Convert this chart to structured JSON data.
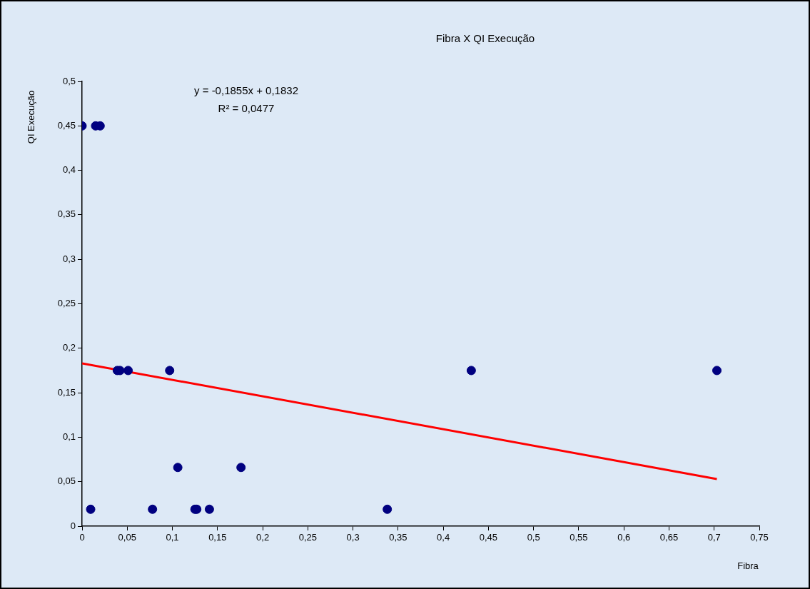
{
  "chart_data": {
    "type": "scatter",
    "title": "Fibra X QI Execução",
    "xlabel": "Fibra",
    "ylabel": "QI Execução",
    "annotations": [
      "y = -0,1855x + 0,1832",
      "R² = 0,0477"
    ],
    "series": [
      {
        "type": "scatter",
        "color": "#000080",
        "marker": "circle",
        "x": [
          0,
          0.015,
          0.02,
          0.0095,
          0.039,
          0.042,
          0.051,
          0.097,
          0.106,
          0.078,
          0.125,
          0.127,
          0.141,
          0.176,
          0.338,
          0.431,
          0.703
        ],
        "values": [
          0.45,
          0.45,
          0.45,
          0.019,
          0.175,
          0.175,
          0.175,
          0.175,
          0.066,
          0.019,
          0.019,
          0.019,
          0.019,
          0.066,
          0.019,
          0.175,
          0.175
        ]
      },
      {
        "type": "line",
        "color": "#ff0000",
        "marker": "none",
        "line_style": "solid",
        "x": [
          0,
          0.703
        ],
        "values": [
          0.183,
          0.053
        ]
      }
    ],
    "xlim": [
      0,
      0.75
    ],
    "ylim": [
      0,
      0.5
    ],
    "xticks": [
      0,
      {
        "value": 0.05,
        "label": "0,05"
      },
      {
        "value": 0.1,
        "label": "0,1"
      },
      {
        "value": 0.15,
        "label": "0,15"
      },
      {
        "value": 0.2,
        "label": "0,2"
      },
      {
        "value": 0.25,
        "label": "0,25"
      },
      {
        "value": 0.3,
        "label": "0,3"
      },
      {
        "value": 0.35,
        "label": "0,35"
      },
      {
        "value": 0.4,
        "label": "0,4"
      },
      {
        "value": 0.45,
        "label": "0,45"
      },
      {
        "value": 0.5,
        "label": "0,5"
      },
      {
        "value": 0.55,
        "label": "0,55"
      },
      {
        "value": 0.6,
        "label": "0,6"
      },
      {
        "value": 0.65,
        "label": "0,65"
      },
      {
        "value": 0.7,
        "label": "0,7"
      },
      {
        "value": 0.75,
        "label": "0,75"
      }
    ],
    "yticks": [
      0,
      {
        "value": 0.05,
        "label": "0,05"
      },
      {
        "value": 0.1,
        "label": "0,1"
      },
      {
        "value": 0.15,
        "label": "0,15"
      },
      {
        "value": 0.2,
        "label": "0,2"
      },
      {
        "value": 0.25,
        "label": "0,25"
      },
      {
        "value": 0.3,
        "label": "0,3"
      },
      {
        "value": 0.35,
        "label": "0,35"
      },
      {
        "value": 0.4,
        "label": "0,4"
      },
      {
        "value": 0.45,
        "label": "0,45"
      },
      {
        "value": 0.5,
        "label": "0,5"
      }
    ],
    "grid": false
  }
}
